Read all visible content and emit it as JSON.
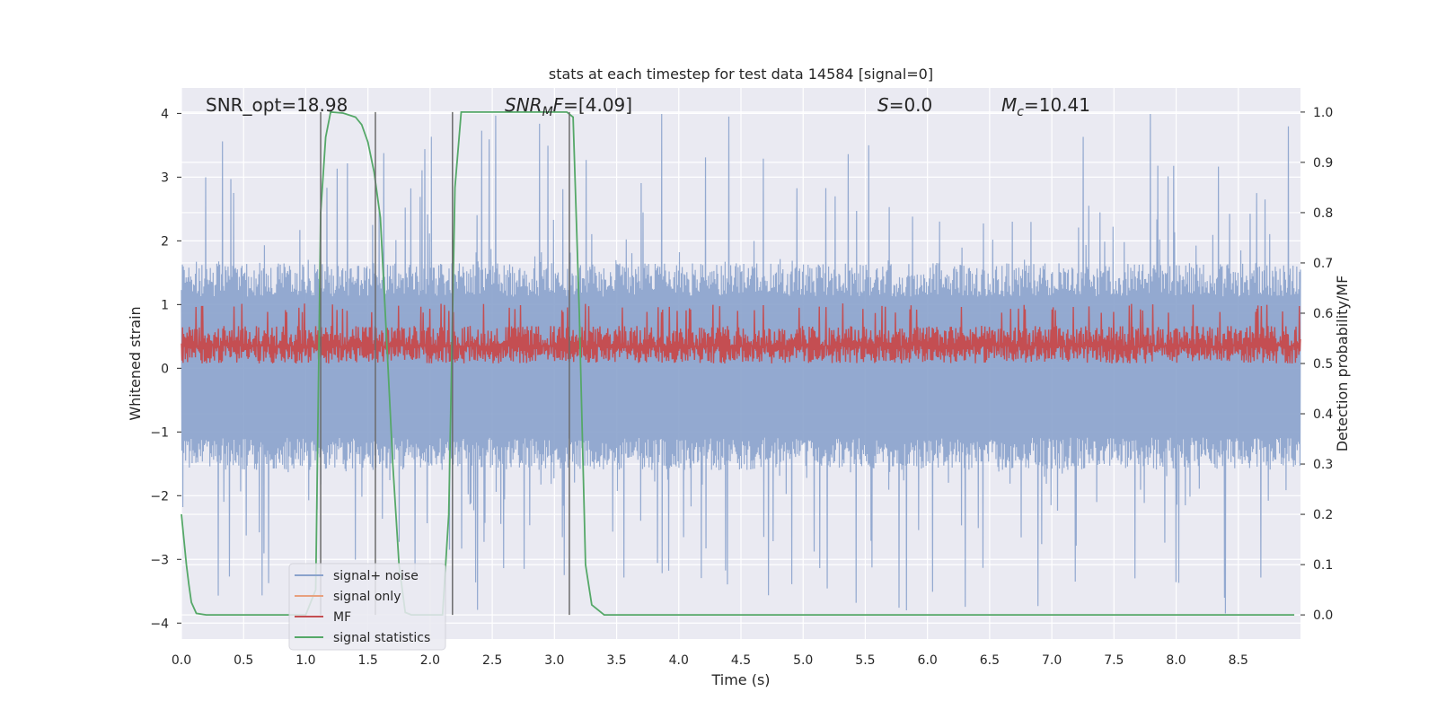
{
  "chart_data": {
    "type": "line",
    "title": "stats at each timestep for test data 14584 [signal=0]",
    "xlabel": "Time (s)",
    "ylabel": "Whitened strain",
    "y2label": "Detection probability/MF",
    "xlim": [
      0.0,
      9.0
    ],
    "ylim": [
      -4.25,
      4.4
    ],
    "y2lim": [
      -0.048,
      1.048
    ],
    "xticks": [
      "0.0",
      "0.5",
      "1.0",
      "1.5",
      "2.0",
      "2.5",
      "3.0",
      "3.5",
      "4.0",
      "4.5",
      "5.0",
      "5.5",
      "6.0",
      "6.5",
      "7.0",
      "7.5",
      "8.0",
      "8.5"
    ],
    "yticks": [
      "4",
      "3",
      "2",
      "1",
      "0",
      "−1",
      "−2",
      "−3",
      "−4"
    ],
    "y2ticks": [
      "1.0",
      "0.9",
      "0.8",
      "0.7",
      "0.6",
      "0.5",
      "0.4",
      "0.3",
      "0.2",
      "0.1",
      "0.0"
    ],
    "grid": true,
    "legend_position": "lower-left",
    "annotations": {
      "snr_opt": "SNR_opt=18.98",
      "snr_mf": "SNR_MF=[4.09]",
      "s_value": "S=0.0",
      "mc_value": "M_c=10.41"
    },
    "vertical_lines_x": [
      1.12,
      1.56,
      2.18,
      3.12
    ],
    "series": [
      {
        "name": "signal+ noise",
        "color": "#8aa2cc",
        "axis": "left",
        "description_samples": "noise envelope approx ±1.5 with spikes to ±3.8",
        "envelope": {
          "base_pos": 1.5,
          "base_neg": -1.45,
          "max_pos": 4.0,
          "max_neg": -3.85
        }
      },
      {
        "name": "signal only",
        "color": "#e8a07e",
        "axis": "left",
        "values": []
      },
      {
        "name": "MF",
        "color": "#c44e52",
        "axis": "right",
        "envelope": {
          "low": 0.5,
          "high": 0.6,
          "max": 0.62
        }
      },
      {
        "name": "signal statistics",
        "color": "#55a868",
        "axis": "right",
        "x": [
          0.0,
          0.02,
          0.04,
          0.06,
          0.08,
          0.12,
          0.2,
          0.3,
          0.5,
          0.8,
          1.0,
          1.08,
          1.12,
          1.16,
          1.2,
          1.3,
          1.4,
          1.45,
          1.5,
          1.55,
          1.6,
          1.65,
          1.7,
          1.75,
          1.8,
          1.85,
          1.9,
          2.0,
          2.1,
          2.15,
          2.2,
          2.25,
          2.3,
          2.5,
          2.8,
          3.0,
          3.1,
          3.15,
          3.2,
          3.25,
          3.3,
          3.4,
          3.6,
          4.0,
          5.0,
          6.0,
          7.0,
          8.0,
          8.95
        ],
        "y": [
          0.2,
          0.15,
          0.1,
          0.06,
          0.025,
          0.003,
          0.0,
          0.0,
          0.0,
          0.0,
          0.0,
          0.05,
          0.8,
          0.95,
          1.0,
          0.998,
          0.99,
          0.975,
          0.94,
          0.88,
          0.79,
          0.55,
          0.3,
          0.1,
          0.005,
          0.0,
          0.0,
          0.0,
          0.0,
          0.2,
          0.85,
          1.0,
          1.0,
          1.0,
          1.0,
          1.0,
          1.0,
          0.99,
          0.6,
          0.1,
          0.02,
          0.0,
          0.0,
          0.0,
          0.0,
          0.0,
          0.0,
          0.0,
          0.0
        ]
      }
    ]
  },
  "colors": {
    "background": "#eaeaf2",
    "grid": "#ffffff",
    "vline": "#6b6b6b"
  }
}
